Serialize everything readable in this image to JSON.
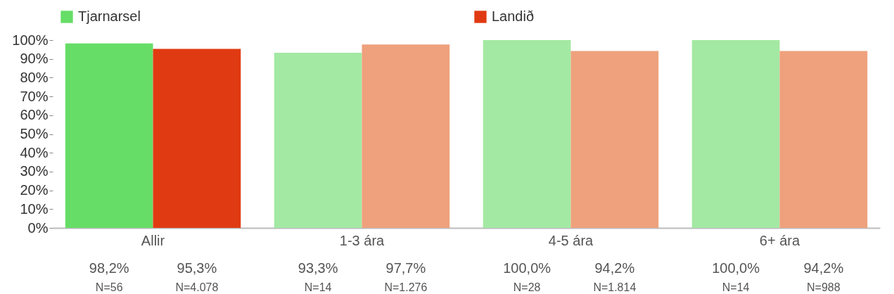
{
  "chart_data": {
    "type": "bar",
    "categories": [
      "Allir",
      "1-3 ára",
      "4-5 ára",
      "6+ ára"
    ],
    "series": [
      {
        "name": "Tjarnarsel",
        "color": "#66dd66",
        "colors": [
          "#66dd66",
          "#a3e9a3",
          "#a3e9a3",
          "#a3e9a3"
        ],
        "values": [
          98.2,
          93.3,
          100.0,
          100.0
        ],
        "value_labels": [
          "98,2%",
          "93,3%",
          "100,0%",
          "100,0%"
        ]
      },
      {
        "name": "Landið",
        "color": "#e03a12",
        "colors": [
          "#e03a12",
          "#eea17c",
          "#eea17c",
          "#eea17c"
        ],
        "values": [
          95.3,
          97.7,
          94.2,
          94.2
        ],
        "value_labels": [
          "95,3%",
          "97,7%",
          "94,2%",
          "94,2%"
        ]
      }
    ],
    "ylim": [
      0,
      100
    ],
    "yticks": [
      {
        "value": 0,
        "label": "0%"
      },
      {
        "value": 10,
        "label": "10%"
      },
      {
        "value": 20,
        "label": "20%"
      },
      {
        "value": 30,
        "label": "30%"
      },
      {
        "value": 40,
        "label": "40%"
      },
      {
        "value": 50,
        "label": "50%"
      },
      {
        "value": 60,
        "label": "60%"
      },
      {
        "value": 70,
        "label": "70%"
      },
      {
        "value": 80,
        "label": "80%"
      },
      {
        "value": 90,
        "label": "90%"
      },
      {
        "value": 100,
        "label": "100%"
      }
    ],
    "annotations": [
      "N=56",
      "N=4.078",
      "N=14",
      "N=1.276",
      "N=28",
      "N=1.814",
      "N=14",
      "N=988"
    ],
    "legend": "top",
    "grid": false
  }
}
